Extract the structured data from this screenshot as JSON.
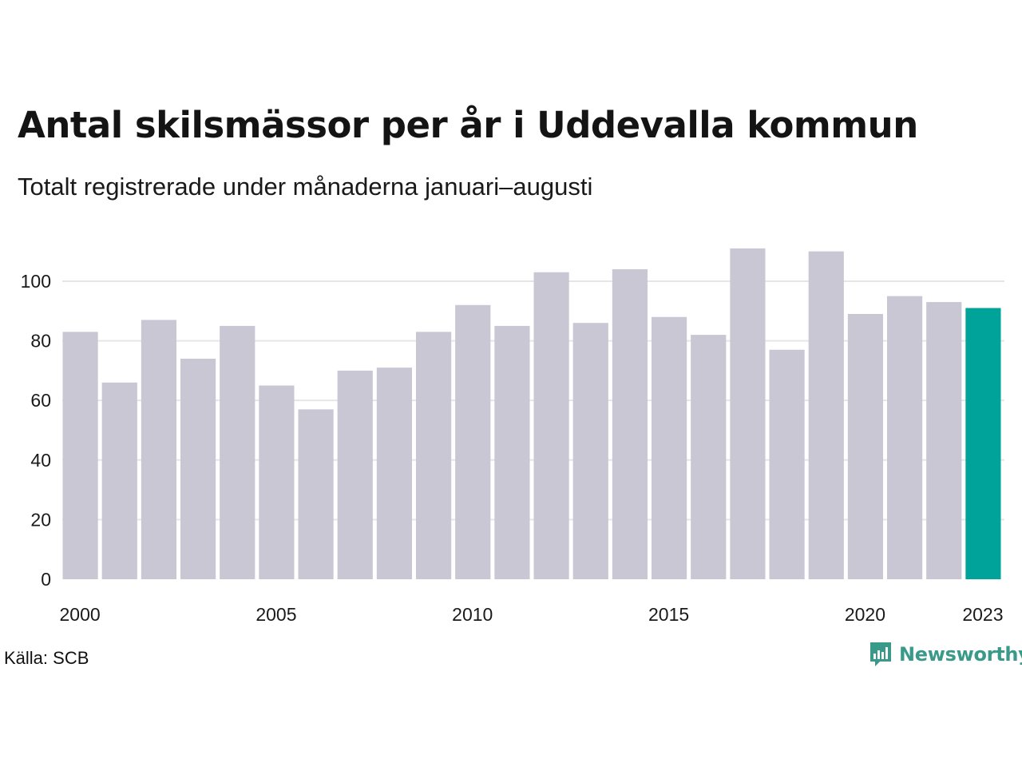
{
  "header": {
    "title": "Antal skilsmässor per år i Uddevalla kommun",
    "subtitle": "Totalt registrerade under månaderna januari–augusti"
  },
  "footer": {
    "source": "Källa: SCB",
    "brand": "Newsworthy"
  },
  "colors": {
    "bar": "#c8c7d3",
    "highlight": "#00a399",
    "grid": "#e6e6e6",
    "brand": "#3a9a8a"
  },
  "chart_data": {
    "type": "bar",
    "categories": [
      "2000",
      "2001",
      "2002",
      "2003",
      "2004",
      "2005",
      "2006",
      "2007",
      "2008",
      "2009",
      "2010",
      "2011",
      "2012",
      "2013",
      "2014",
      "2015",
      "2016",
      "2017",
      "2018",
      "2019",
      "2020",
      "2021",
      "2022",
      "2023"
    ],
    "values": [
      83,
      66,
      87,
      74,
      85,
      65,
      57,
      70,
      71,
      83,
      92,
      85,
      103,
      86,
      104,
      88,
      82,
      111,
      77,
      110,
      89,
      95,
      93,
      91
    ],
    "highlight_category": "2023",
    "x_tick_labels": [
      "2000",
      "2005",
      "2010",
      "2015",
      "2020",
      "2023"
    ],
    "y_ticks": [
      0,
      20,
      40,
      60,
      80,
      100
    ],
    "ylim": [
      0,
      115
    ],
    "grid": "horizontal"
  }
}
